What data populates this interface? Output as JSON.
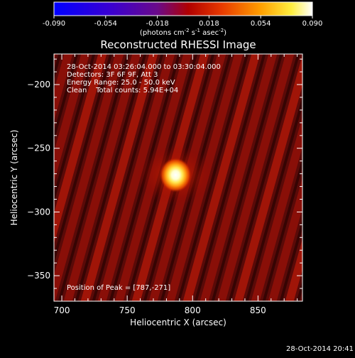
{
  "colorbar": {
    "ticks": [
      "-0.090",
      "-0.054",
      "-0.018",
      "0.018",
      "0.054",
      "0.090"
    ],
    "min": -0.09,
    "max": 0.09,
    "units_main": "(photons cm",
    "units_sup1": "-2",
    "units_mid1": " s",
    "units_sup2": "-1",
    "units_mid2": " asec",
    "units_sup3": "-2",
    "units_end": ")"
  },
  "plot": {
    "title": "Reconstructed RHESSI Image",
    "info": [
      "28-Oct-2014 03:26:04.000 to 03:30:04.000",
      "Detectors: 3F 6F 9F, Att 3",
      "Energy Range: 25.0 - 50.0 keV",
      "Clean    Total counts: 5.94E+04"
    ],
    "peak_label": "Position of Peak = [787,-271]"
  },
  "footer": {
    "date": "28-Oct-2014 20:41"
  },
  "colors": {
    "background": "#000000",
    "axes": "#ffffff"
  },
  "chart_data": {
    "type": "heatmap",
    "title": "Reconstructed RHESSI Image",
    "xlabel": "Heliocentric X (arcsec)",
    "ylabel": "Heliocentric Y (arcsec)",
    "xlim": [
      694,
      884
    ],
    "ylim": [
      -370,
      -176
    ],
    "x_ticks": [
      700,
      750,
      800,
      850
    ],
    "y_ticks": [
      -200,
      -250,
      -300,
      -350
    ],
    "colormap": "blue-purple-red-yellow-white (IDL color table)",
    "peak": {
      "x": 787,
      "y": -271
    },
    "grid": false
  }
}
